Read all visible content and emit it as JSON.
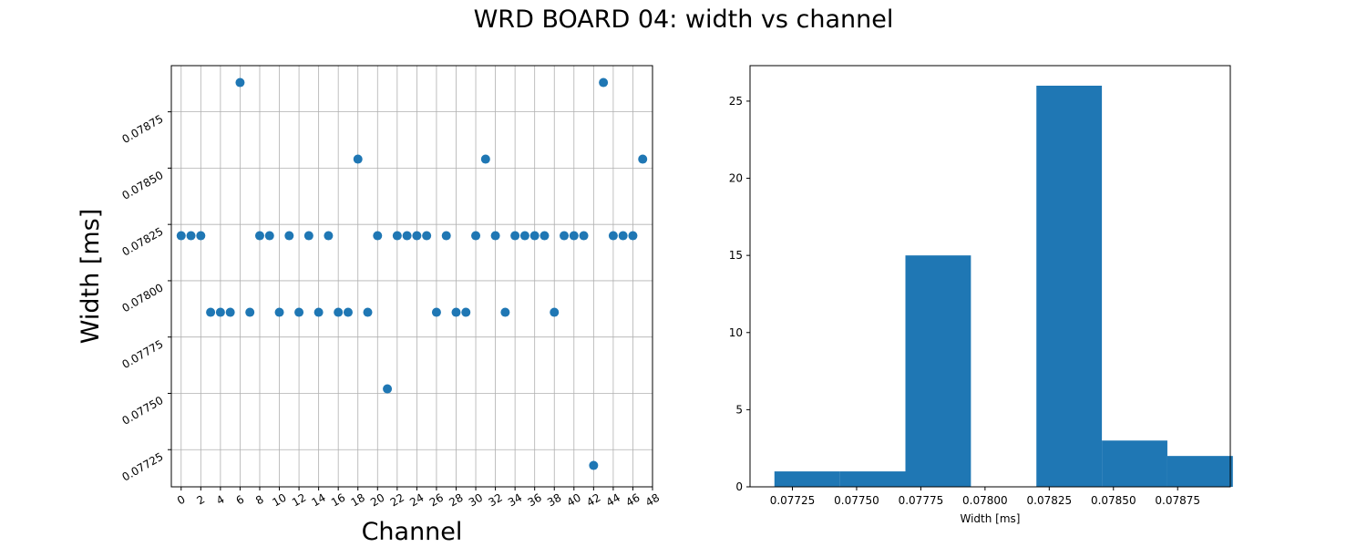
{
  "suptitle": "WRD BOARD 04: width vs channel",
  "colors": {
    "marker": "#1f77b4",
    "grid": "#b0b0b0",
    "axis": "#000000"
  },
  "chart_data": [
    {
      "type": "scatter",
      "xlabel": "Channel",
      "ylabel": "Width [ms]",
      "grid": true,
      "xlim": [
        -1,
        48
      ],
      "ylim": [
        0.077085,
        0.078955
      ],
      "xticks": [
        0,
        2,
        4,
        6,
        8,
        10,
        12,
        14,
        16,
        18,
        20,
        22,
        24,
        26,
        28,
        30,
        32,
        34,
        36,
        38,
        40,
        42,
        44,
        46,
        48
      ],
      "yticks": [
        0.07725,
        0.0775,
        0.07775,
        0.078,
        0.07825,
        0.0785,
        0.07875
      ],
      "ytick_labels": [
        "0.07725",
        "0.07750",
        "0.07775",
        "0.07800",
        "0.07825",
        "0.07850",
        "0.07875"
      ],
      "x": [
        0,
        1,
        2,
        3,
        4,
        5,
        6,
        7,
        8,
        9,
        10,
        11,
        12,
        13,
        14,
        15,
        16,
        17,
        18,
        19,
        20,
        21,
        22,
        23,
        24,
        25,
        26,
        27,
        28,
        29,
        30,
        31,
        32,
        33,
        34,
        35,
        36,
        37,
        38,
        39,
        40,
        41,
        42,
        43,
        44,
        45,
        46,
        47
      ],
      "y": [
        0.0782,
        0.0782,
        0.0782,
        0.07786,
        0.07786,
        0.07786,
        0.07888,
        0.07786,
        0.0782,
        0.0782,
        0.07786,
        0.0782,
        0.07786,
        0.0782,
        0.07786,
        0.0782,
        0.07786,
        0.07786,
        0.07854,
        0.07786,
        0.0782,
        0.07752,
        0.0782,
        0.0782,
        0.0782,
        0.0782,
        0.07786,
        0.0782,
        0.07786,
        0.07786,
        0.0782,
        0.07854,
        0.0782,
        0.07786,
        0.0782,
        0.0782,
        0.0782,
        0.0782,
        0.07786,
        0.0782,
        0.0782,
        0.0782,
        0.07718,
        0.07888,
        0.0782,
        0.0782,
        0.0782,
        0.07854
      ]
    },
    {
      "type": "bar",
      "xlabel": "Width [ms]",
      "ylabel": "",
      "grid": false,
      "xlim": [
        0.077085,
        0.078955
      ],
      "ylim": [
        0,
        27.3
      ],
      "xticks": [
        0.07725,
        0.0775,
        0.07775,
        0.078,
        0.07825,
        0.0785,
        0.07875
      ],
      "xtick_labels": [
        "0.07725",
        "0.07750",
        "0.07775",
        "0.07800",
        "0.07825",
        "0.07850",
        "0.07875"
      ],
      "yticks": [
        0,
        5,
        10,
        15,
        20,
        25
      ],
      "ytick_labels": [
        "0",
        "5",
        "10",
        "15",
        "20",
        "25"
      ],
      "bin_edges": [
        0.07718,
        0.077435,
        0.07769,
        0.077945,
        0.0782,
        0.078455,
        0.07871,
        0.078965
      ],
      "values": [
        1,
        1,
        15,
        0,
        26,
        3,
        2
      ]
    }
  ]
}
